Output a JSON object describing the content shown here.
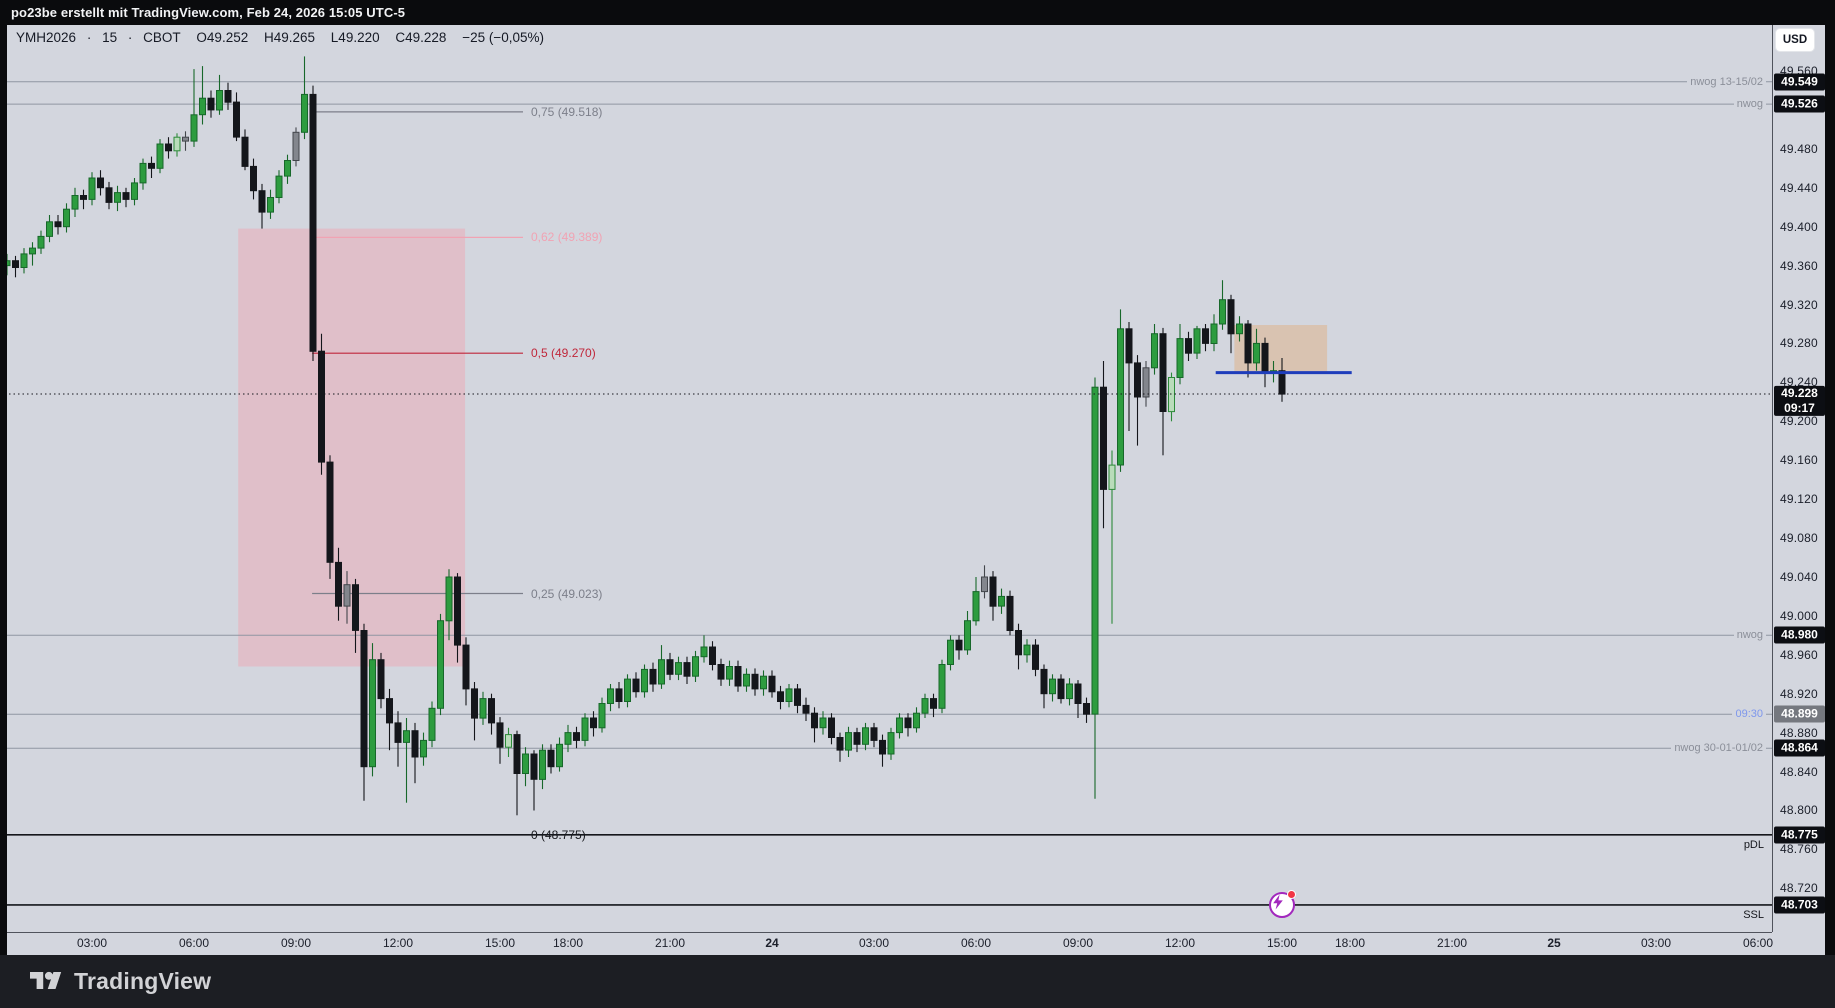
{
  "topbar": {
    "text": "po23be erstellt mit TradingView.com, Feb 24, 2026 15:05 UTC-5"
  },
  "legend": {
    "symbol": "YMH2026",
    "sep": "·",
    "interval": "15",
    "exchange": "CBOT",
    "open": "O49.252",
    "high": "H49.265",
    "low": "L49.220",
    "close": "C49.228",
    "change": "−25 (−0,05%)"
  },
  "axis": {
    "currency": "USD",
    "price_ticks": [
      "49.560",
      "49.480",
      "49.440",
      "49.400",
      "49.360",
      "49.320",
      "49.280",
      "49.240",
      "49.200",
      "49.160",
      "49.120",
      "49.080",
      "49.040",
      "49.000",
      "48.960",
      "48.920",
      "48.880",
      "48.840",
      "48.800",
      "48.760",
      "48.720"
    ],
    "badges": [
      {
        "label": "49.549",
        "price": 49.549,
        "bg": "#0c0e13"
      },
      {
        "label": "49.526",
        "price": 49.526,
        "bg": "#0c0e13"
      },
      {
        "label": "49.228",
        "sub": "09:17",
        "price": 49.228,
        "bg": "#0c0e13"
      },
      {
        "label": "48.980",
        "price": 48.98,
        "bg": "#0c0e13"
      },
      {
        "label": "48.899",
        "price": 48.899,
        "bg": "#75787f"
      },
      {
        "label": "48.864",
        "price": 48.864,
        "bg": "#0c0e13"
      },
      {
        "label": "48.775",
        "price": 48.775,
        "bg": "#0c0e13"
      },
      {
        "label": "48.703",
        "price": 48.703,
        "bg": "#0c0e13"
      }
    ]
  },
  "footer": {
    "logo_text": "TradingView"
  },
  "chart_data": {
    "type": "candlestick",
    "symbol": "YMH2026",
    "interval": "15",
    "exchange": "CBOT",
    "current_bar": {
      "open": 49.252,
      "high": 49.265,
      "low": 49.22,
      "close": 49.228,
      "change_points": -25,
      "change_percent": "-0,05%"
    },
    "countdown": "09:17",
    "visible_price_range": [
      48.675,
      49.607
    ],
    "grid": false,
    "time_axis": [
      {
        "label": "03:00",
        "bar": 12
      },
      {
        "label": "06:00",
        "bar": 24
      },
      {
        "label": "09:00",
        "bar": 36
      },
      {
        "label": "12:00",
        "bar": 48
      },
      {
        "label": "15:00",
        "bar": 60
      },
      {
        "label": "18:00",
        "bar": 68
      },
      {
        "label": "21:00",
        "bar": 80
      },
      {
        "label": "24",
        "bar": 92,
        "bold": true
      },
      {
        "label": "03:00",
        "bar": 104
      },
      {
        "label": "06:00",
        "bar": 116
      },
      {
        "label": "09:00",
        "bar": 128
      },
      {
        "label": "12:00",
        "bar": 140
      },
      {
        "label": "15:00",
        "bar": 152
      },
      {
        "label": "18:00",
        "bar": 160
      },
      {
        "label": "21:00",
        "bar": 172
      },
      {
        "label": "25",
        "bar": 184,
        "bold": true
      },
      {
        "label": "03:00",
        "bar": 196
      },
      {
        "label": "06:00",
        "bar": 208
      }
    ],
    "levels": [
      {
        "name": "nwog-upper-1",
        "price": 49.549,
        "label": "nwog 13-15/02",
        "color": "#9096a2",
        "style": "solid",
        "width": 1,
        "label_color": "#8b8f99"
      },
      {
        "name": "nwog-upper-2",
        "price": 49.526,
        "label": "nwog",
        "color": "#9096a2",
        "style": "solid",
        "width": 1,
        "label_color": "#8b8f99"
      },
      {
        "name": "nwog-mid",
        "price": 48.98,
        "label": "nwog",
        "color": "#9096a2",
        "style": "solid",
        "width": 1,
        "label_color": "#8b8f99"
      },
      {
        "name": "open-0930",
        "price": 48.899,
        "label": "09:30",
        "color": "#9096a2",
        "style": "solid",
        "width": 1,
        "label_color": "#7e97ec"
      },
      {
        "name": "nwog-lower",
        "price": 48.864,
        "label": "nwog 30-01-01/02",
        "color": "#9096a2",
        "style": "solid",
        "width": 1,
        "label_color": "#8b8f99"
      },
      {
        "name": "pdl",
        "price": 48.775,
        "label": "pDL",
        "color": "#15171c",
        "style": "solid",
        "width": 1.6,
        "label_color": "#15171c",
        "label_below": true
      },
      {
        "name": "ssl",
        "price": 48.703,
        "label": "SSL",
        "color": "#15171c",
        "style": "solid",
        "width": 1.6,
        "label_color": "#15171c",
        "label_below": true
      },
      {
        "name": "last-price",
        "price": 49.228,
        "label": "",
        "color": "#15171c",
        "style": "dotted",
        "width": 1
      }
    ],
    "fib_retracement": {
      "bar_start": 37.9,
      "bar_end": 62.7,
      "label_x": 531,
      "levels": [
        {
          "text": "0,75 (49.518)",
          "value": 0.75,
          "price": 49.518,
          "color": "#7c7f8a"
        },
        {
          "text": "0,62 (49.389)",
          "value": 0.62,
          "price": 49.389,
          "color": "#f1a3b3"
        },
        {
          "text": "0,5 (49.270)",
          "value": 0.5,
          "price": 49.27,
          "color": "#c0273a"
        },
        {
          "text": "0,25 (49.023)",
          "value": 0.25,
          "price": 49.023,
          "color": "#7c7f8a"
        },
        {
          "text": "0 (48.775)",
          "value": 0,
          "price": 48.775,
          "color": "#15171c"
        }
      ]
    },
    "boxes": [
      {
        "name": "red-zone-box",
        "bar1": 29.2,
        "bar2": 55.9,
        "price_top": 49.398,
        "price_bottom": 48.948,
        "fill": "#f59aa8",
        "opacity": 0.38
      },
      {
        "name": "tan-gap-box",
        "bar1": 146.4,
        "bar2": 157.3,
        "price_top": 49.299,
        "price_bottom": 49.251,
        "fill": "#e0b083",
        "opacity": 0.5
      }
    ],
    "rays": [
      {
        "name": "blue-level-ray",
        "price": 49.25,
        "bar1": 144.2,
        "bar2": 160.2,
        "color": "#1e3dbb",
        "width": 3
      }
    ],
    "alert": {
      "bar": 152,
      "price": 48.703
    },
    "candle_colors": {
      "up": "#2d9c3f",
      "up_border": "#17682a",
      "down": "#14161b",
      "down_border": "#14161b",
      "pale": "#b9dcba",
      "pale_border": "#2d8a3a",
      "gray": "#83868d",
      "gray_border": "#43464c"
    },
    "candle_overrides": {
      "pale": [
        22,
        61,
        132,
        139
      ],
      "gray": [
        23,
        36,
        42,
        117,
        136
      ]
    },
    "candles": [
      [
        49.352,
        49.368,
        49.344,
        49.36
      ],
      [
        49.36,
        49.372,
        49.35,
        49.365
      ],
      [
        49.365,
        49.37,
        49.348,
        49.358
      ],
      [
        49.358,
        49.378,
        49.352,
        49.372
      ],
      [
        49.372,
        49.384,
        49.36,
        49.378
      ],
      [
        49.378,
        49.396,
        49.372,
        49.39
      ],
      [
        49.39,
        49.412,
        49.384,
        49.405
      ],
      [
        49.405,
        49.412,
        49.392,
        49.4
      ],
      [
        49.4,
        49.424,
        49.394,
        49.418
      ],
      [
        49.418,
        49.44,
        49.41,
        49.432
      ],
      [
        49.432,
        49.438,
        49.418,
        49.428
      ],
      [
        49.428,
        49.456,
        49.422,
        49.45
      ],
      [
        49.45,
        49.458,
        49.432,
        49.44
      ],
      [
        49.44,
        49.446,
        49.418,
        49.425
      ],
      [
        49.425,
        49.442,
        49.416,
        49.435
      ],
      [
        49.435,
        49.44,
        49.42,
        49.428
      ],
      [
        49.428,
        49.45,
        49.422,
        49.445
      ],
      [
        49.445,
        49.47,
        49.438,
        49.465
      ],
      [
        49.465,
        49.472,
        49.45,
        49.46
      ],
      [
        49.46,
        49.49,
        49.455,
        49.485
      ],
      [
        49.485,
        49.492,
        49.47,
        49.478
      ],
      [
        49.478,
        49.496,
        49.472,
        49.492
      ],
      [
        49.492,
        49.498,
        49.478,
        49.488
      ],
      [
        49.488,
        49.562,
        49.482,
        49.515
      ],
      [
        49.515,
        49.565,
        49.505,
        49.532
      ],
      [
        49.532,
        49.54,
        49.512,
        49.52
      ],
      [
        49.52,
        49.556,
        49.515,
        49.54
      ],
      [
        49.54,
        49.548,
        49.52,
        49.528
      ],
      [
        49.528,
        49.538,
        49.488,
        49.492
      ],
      [
        49.492,
        49.5,
        49.458,
        49.462
      ],
      [
        49.462,
        49.47,
        49.428,
        49.437
      ],
      [
        49.437,
        49.444,
        49.398,
        49.415
      ],
      [
        49.415,
        49.438,
        49.408,
        49.43
      ],
      [
        49.43,
        49.458,
        49.424,
        49.452
      ],
      [
        49.452,
        49.474,
        49.444,
        49.468
      ],
      [
        49.468,
        49.502,
        49.462,
        49.497
      ],
      [
        49.497,
        49.575,
        49.49,
        49.536
      ],
      [
        49.536,
        49.545,
        49.262,
        49.272
      ],
      [
        49.272,
        49.29,
        49.145,
        49.158
      ],
      [
        49.158,
        49.165,
        49.038,
        49.055
      ],
      [
        49.055,
        49.07,
        48.995,
        49.01
      ],
      [
        49.01,
        49.046,
        48.992,
        49.032
      ],
      [
        49.032,
        49.038,
        48.962,
        48.985
      ],
      [
        48.985,
        48.992,
        48.81,
        48.845
      ],
      [
        48.845,
        48.972,
        48.835,
        48.955
      ],
      [
        48.955,
        48.962,
        48.905,
        48.915
      ],
      [
        48.915,
        48.925,
        48.862,
        48.89
      ],
      [
        48.89,
        48.902,
        48.845,
        48.87
      ],
      [
        48.87,
        48.895,
        48.808,
        48.882
      ],
      [
        48.882,
        48.89,
        48.828,
        48.855
      ],
      [
        48.855,
        48.88,
        48.846,
        48.872
      ],
      [
        48.872,
        48.912,
        48.865,
        48.905
      ],
      [
        48.905,
        49.002,
        48.898,
        48.995
      ],
      [
        48.995,
        49.048,
        48.975,
        49.04
      ],
      [
        49.04,
        49.044,
        48.952,
        48.97
      ],
      [
        48.97,
        48.978,
        48.908,
        48.925
      ],
      [
        48.925,
        48.932,
        48.872,
        48.895
      ],
      [
        48.895,
        48.922,
        48.888,
        48.915
      ],
      [
        48.915,
        48.92,
        48.878,
        48.89
      ],
      [
        48.89,
        48.896,
        48.848,
        48.865
      ],
      [
        48.865,
        48.885,
        48.855,
        48.878
      ],
      [
        48.878,
        48.882,
        48.795,
        48.838
      ],
      [
        48.838,
        48.865,
        48.825,
        48.858
      ],
      [
        48.858,
        48.862,
        48.8,
        48.832
      ],
      [
        48.832,
        48.868,
        48.822,
        48.862
      ],
      [
        48.862,
        48.868,
        48.838,
        48.845
      ],
      [
        48.845,
        48.875,
        48.84,
        48.868
      ],
      [
        48.868,
        48.888,
        48.86,
        48.88
      ],
      [
        48.88,
        48.886,
        48.864,
        48.872
      ],
      [
        48.872,
        48.9,
        48.866,
        48.895
      ],
      [
        48.895,
        48.902,
        48.876,
        48.885
      ],
      [
        48.885,
        48.916,
        48.88,
        48.91
      ],
      [
        48.91,
        48.93,
        48.902,
        48.925
      ],
      [
        48.925,
        48.932,
        48.905,
        48.912
      ],
      [
        48.912,
        48.94,
        48.906,
        48.935
      ],
      [
        48.935,
        48.942,
        48.916,
        48.922
      ],
      [
        48.922,
        48.95,
        48.916,
        48.945
      ],
      [
        48.945,
        48.952,
        48.922,
        48.93
      ],
      [
        48.93,
        48.97,
        48.925,
        48.955
      ],
      [
        48.955,
        48.962,
        48.934,
        48.94
      ],
      [
        48.94,
        48.958,
        48.934,
        48.952
      ],
      [
        48.952,
        48.958,
        48.93,
        48.938
      ],
      [
        48.938,
        48.964,
        48.932,
        48.958
      ],
      [
        48.958,
        48.98,
        48.952,
        48.968
      ],
      [
        48.968,
        48.974,
        48.944,
        48.95
      ],
      [
        48.95,
        48.956,
        48.928,
        48.935
      ],
      [
        48.935,
        48.954,
        48.928,
        48.948
      ],
      [
        48.948,
        48.954,
        48.922,
        48.928
      ],
      [
        48.928,
        48.946,
        48.922,
        48.94
      ],
      [
        48.94,
        48.946,
        48.918,
        48.925
      ],
      [
        48.925,
        48.944,
        48.918,
        48.938
      ],
      [
        48.938,
        48.944,
        48.916,
        48.922
      ],
      [
        48.922,
        48.928,
        48.904,
        48.912
      ],
      [
        48.912,
        48.93,
        48.906,
        48.925
      ],
      [
        48.925,
        48.93,
        48.9,
        48.908
      ],
      [
        48.908,
        48.916,
        48.892,
        48.9
      ],
      [
        48.9,
        48.906,
        48.87,
        48.885
      ],
      [
        48.885,
        48.902,
        48.878,
        48.895
      ],
      [
        48.895,
        48.9,
        48.868,
        48.875
      ],
      [
        48.875,
        48.88,
        48.85,
        48.862
      ],
      [
        48.862,
        48.886,
        48.855,
        48.88
      ],
      [
        48.88,
        48.885,
        48.86,
        48.868
      ],
      [
        48.868,
        48.89,
        48.862,
        48.885
      ],
      [
        48.885,
        48.89,
        48.865,
        48.872
      ],
      [
        48.872,
        48.878,
        48.845,
        48.858
      ],
      [
        48.858,
        48.885,
        48.852,
        48.88
      ],
      [
        48.88,
        48.9,
        48.874,
        48.895
      ],
      [
        48.895,
        48.9,
        48.876,
        48.885
      ],
      [
        48.885,
        48.906,
        48.88,
        48.9
      ],
      [
        48.9,
        48.92,
        48.895,
        48.915
      ],
      [
        48.915,
        48.92,
        48.896,
        48.905
      ],
      [
        48.905,
        48.955,
        48.9,
        48.95
      ],
      [
        48.95,
        48.98,
        48.944,
        48.975
      ],
      [
        48.975,
        48.98,
        48.955,
        48.965
      ],
      [
        48.965,
        49.005,
        48.96,
        48.995
      ],
      [
        48.995,
        49.04,
        48.99,
        49.025
      ],
      [
        49.025,
        49.052,
        49.018,
        49.04
      ],
      [
        49.04,
        49.046,
        48.995,
        49.01
      ],
      [
        49.01,
        49.028,
        49.002,
        49.02
      ],
      [
        49.02,
        49.026,
        48.98,
        48.985
      ],
      [
        48.985,
        48.992,
        48.945,
        48.96
      ],
      [
        48.96,
        48.976,
        48.952,
        48.97
      ],
      [
        48.97,
        48.976,
        48.938,
        48.945
      ],
      [
        48.945,
        48.95,
        48.905,
        48.92
      ],
      [
        48.92,
        48.94,
        48.912,
        48.935
      ],
      [
        48.935,
        48.94,
        48.91,
        48.915
      ],
      [
        48.915,
        48.936,
        48.908,
        48.93
      ],
      [
        48.93,
        48.934,
        48.895,
        48.91
      ],
      [
        48.91,
        48.916,
        48.89,
        48.899
      ],
      [
        48.899,
        49.245,
        48.812,
        49.235
      ],
      [
        49.235,
        49.262,
        49.09,
        49.13
      ],
      [
        49.13,
        49.17,
        48.992,
        49.155
      ],
      [
        49.155,
        49.315,
        49.148,
        49.295
      ],
      [
        49.295,
        49.302,
        49.19,
        49.26
      ],
      [
        49.26,
        49.268,
        49.175,
        49.225
      ],
      [
        49.225,
        49.262,
        49.215,
        49.255
      ],
      [
        49.255,
        49.3,
        49.248,
        49.29
      ],
      [
        49.29,
        49.296,
        49.165,
        49.21
      ],
      [
        49.21,
        49.25,
        49.2,
        49.245
      ],
      [
        49.245,
        49.3,
        49.238,
        49.285
      ],
      [
        49.285,
        49.292,
        49.262,
        49.27
      ],
      [
        49.27,
        49.298,
        49.264,
        49.295
      ],
      [
        49.295,
        49.3,
        49.272,
        49.28
      ],
      [
        49.28,
        49.31,
        49.272,
        49.3
      ],
      [
        49.3,
        49.345,
        49.294,
        49.325
      ],
      [
        49.325,
        49.33,
        49.27,
        49.29
      ],
      [
        49.29,
        49.308,
        49.282,
        49.3
      ],
      [
        49.3,
        49.304,
        49.245,
        49.26
      ],
      [
        49.26,
        49.295,
        49.252,
        49.28
      ],
      [
        49.28,
        49.286,
        49.235,
        49.25
      ],
      [
        49.25,
        49.262,
        49.24,
        49.252
      ],
      [
        49.252,
        49.265,
        49.22,
        49.228
      ]
    ]
  }
}
